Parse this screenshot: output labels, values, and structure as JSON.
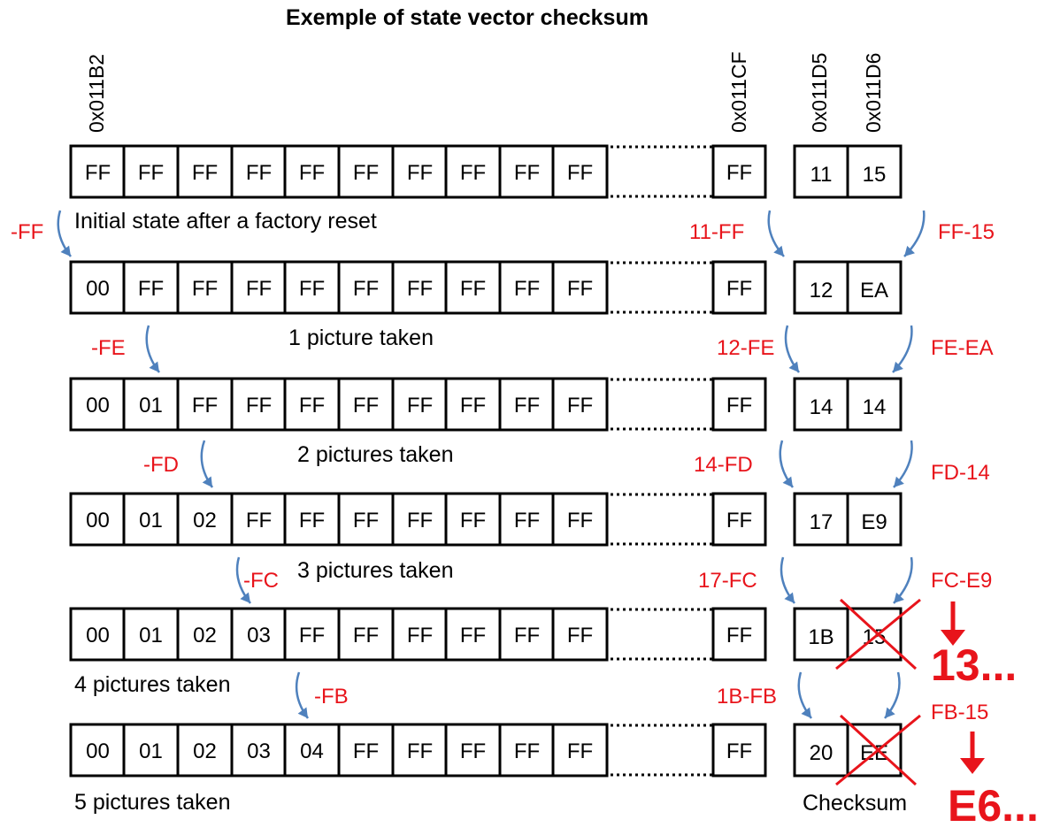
{
  "title": "Exemple of state vector checksum",
  "addresses": {
    "first": "0x011B2",
    "last": "0x011CF",
    "checksum_hi": "0x011D5",
    "checksum_lo": "0x011D6"
  },
  "rows": [
    {
      "cells": [
        "FF",
        "FF",
        "FF",
        "FF",
        "FF",
        "FF",
        "FF",
        "FF",
        "FF",
        "FF"
      ],
      "last_cell": "FF",
      "checksum": [
        "11",
        "15"
      ],
      "checksum_crossed": false,
      "caption": "Initial state after a factory reset"
    },
    {
      "cells": [
        "00",
        "FF",
        "FF",
        "FF",
        "FF",
        "FF",
        "FF",
        "FF",
        "FF",
        "FF"
      ],
      "last_cell": "FF",
      "checksum": [
        "12",
        "EA"
      ],
      "checksum_crossed": false,
      "caption": "1 picture taken"
    },
    {
      "cells": [
        "00",
        "01",
        "FF",
        "FF",
        "FF",
        "FF",
        "FF",
        "FF",
        "FF",
        "FF"
      ],
      "last_cell": "FF",
      "checksum": [
        "14",
        "14"
      ],
      "checksum_crossed": false,
      "caption": "2 pictures taken"
    },
    {
      "cells": [
        "00",
        "01",
        "02",
        "FF",
        "FF",
        "FF",
        "FF",
        "FF",
        "FF",
        "FF"
      ],
      "last_cell": "FF",
      "checksum": [
        "17",
        "E9"
      ],
      "checksum_crossed": false,
      "caption": "3 pictures taken"
    },
    {
      "cells": [
        "00",
        "01",
        "02",
        "03",
        "FF",
        "FF",
        "FF",
        "FF",
        "FF",
        "FF"
      ],
      "last_cell": "FF",
      "checksum": [
        "1B",
        "15"
      ],
      "checksum_crossed": true,
      "caption": "4 pictures taken"
    },
    {
      "cells": [
        "00",
        "01",
        "02",
        "03",
        "04",
        "FF",
        "FF",
        "FF",
        "FF",
        "FF"
      ],
      "last_cell": "FF",
      "checksum": [
        "20",
        "EE"
      ],
      "checksum_crossed": true,
      "caption": "5 pictures taken"
    }
  ],
  "transitions": [
    {
      "left": "-FF",
      "mid": "11-FF",
      "right": "FF-15"
    },
    {
      "left": "-FE",
      "mid": "12-FE",
      "right": "FE-EA"
    },
    {
      "left": "-FD",
      "mid": "14-FD",
      "right": "FD-14"
    },
    {
      "left": "-FC",
      "mid": "17-FC",
      "right": "FC-E9"
    },
    {
      "left": "-FB",
      "mid": "1B-FB",
      "right": "FB-15"
    }
  ],
  "corrections": [
    "13...",
    "E6..."
  ],
  "checksum_label": "Checksum"
}
